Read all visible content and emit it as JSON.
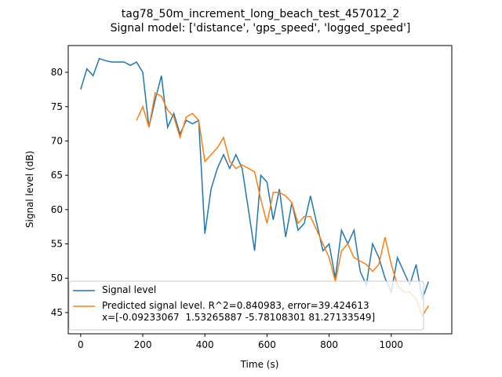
{
  "chart_data": {
    "type": "line",
    "title": "tag78_50m_increment_long_beach_test_457012_2",
    "subtitle": "Signal model: ['distance', 'gps_speed', 'logged_speed']",
    "x_label": "Time (s)",
    "y_label": "Signal level (dB)",
    "x": [
      0,
      20,
      40,
      60,
      80,
      100,
      120,
      140,
      160,
      180,
      200,
      220,
      240,
      260,
      280,
      300,
      320,
      340,
      360,
      380,
      400,
      420,
      440,
      460,
      480,
      500,
      520,
      540,
      560,
      580,
      600,
      620,
      640,
      660,
      680,
      700,
      720,
      740,
      760,
      780,
      800,
      820,
      840,
      860,
      880,
      900,
      920,
      940,
      960,
      980,
      1000,
      1020,
      1040,
      1060,
      1080,
      1100,
      1120
    ],
    "series": [
      {
        "name": "Signal level",
        "color": "#1f77b4",
        "values": [
          77.5,
          80.5,
          79.5,
          82,
          81.7,
          81.5,
          81.5,
          81.5,
          81,
          81.5,
          80,
          72,
          76,
          79.5,
          72,
          74,
          71,
          73,
          72.5,
          73,
          56.5,
          63,
          66,
          68,
          66,
          68,
          66,
          60,
          54,
          65,
          64,
          58.5,
          63,
          56,
          61,
          57,
          58,
          62,
          58,
          54,
          55,
          50,
          57,
          55,
          57,
          51,
          49,
          55,
          53,
          50,
          48,
          53,
          51,
          49,
          52,
          47,
          49.5
        ]
      },
      {
        "name": "Predicted signal level. R^2=0.840983, error=39.424613\nx=[-0.09233067  1.53265887 -5.78108301 81.27133549]",
        "color": "#ff7f0e",
        "values": [
          null,
          null,
          null,
          null,
          null,
          null,
          null,
          null,
          null,
          73,
          75,
          72,
          77,
          76.5,
          74.5,
          73.5,
          70.5,
          73.5,
          74,
          73,
          67,
          68,
          69,
          70.5,
          67,
          66,
          66.5,
          66,
          65.5,
          61.5,
          58,
          62.5,
          62.5,
          62,
          61,
          58,
          59,
          59,
          57,
          55,
          53,
          49.5,
          54,
          55,
          53,
          52.5,
          52,
          51,
          52,
          56,
          52,
          49,
          48,
          48,
          47,
          44.5,
          46
        ]
      }
    ],
    "xlim": [
      -40,
      1195
    ],
    "ylim": [
      41.9,
      83.9
    ],
    "xticks": [
      0,
      200,
      400,
      600,
      800,
      1000
    ],
    "yticks": [
      45,
      50,
      55,
      60,
      65,
      70,
      75,
      80
    ],
    "legend": "lower left"
  }
}
